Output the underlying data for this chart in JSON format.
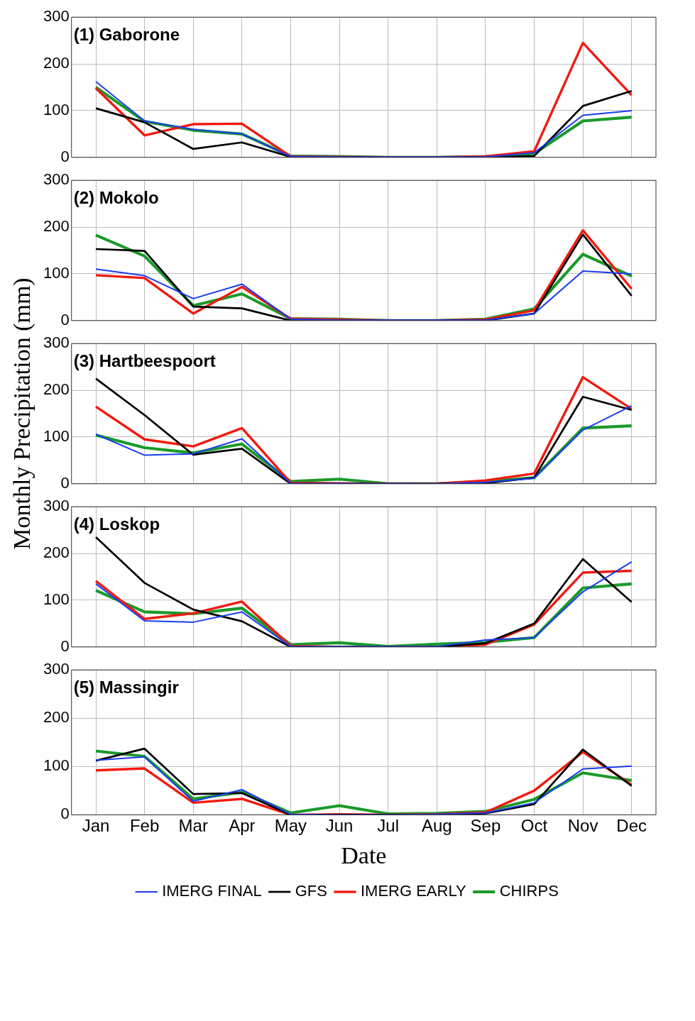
{
  "chart_data": [
    {
      "type": "line",
      "title": "(1) Gaborone",
      "ylim": [
        0,
        300
      ],
      "yticks": [
        0,
        100,
        200,
        300
      ],
      "grid": true,
      "legend": false,
      "tick_labels": "y",
      "marker": "none",
      "line_style": "solid",
      "series": [
        {
          "color": "#1a3cf0",
          "values": [
            162,
            78,
            60,
            50,
            2,
            1,
            null,
            null,
            1,
            10,
            90,
            100
          ]
        },
        {
          "color": "#000000",
          "values": [
            105,
            75,
            18,
            32,
            1,
            0,
            0,
            0,
            0,
            3,
            110,
            142
          ]
        },
        {
          "color": "#f01a0f",
          "values": [
            148,
            47,
            71,
            72,
            2,
            1,
            0,
            0,
            2,
            13,
            245,
            133
          ]
        },
        {
          "color": "#1a9a2a",
          "values": [
            150,
            77,
            58,
            50,
            3,
            2,
            0,
            0,
            2,
            8,
            78,
            86
          ]
        }
      ]
    },
    {
      "type": "line",
      "title": "(2) Mokolo",
      "ylim": [
        0,
        300
      ],
      "yticks": [
        0,
        100,
        200,
        300
      ],
      "grid": true,
      "legend": false,
      "tick_labels": "y",
      "marker": "none",
      "line_style": "solid",
      "series": [
        {
          "color": "#1a3cf0",
          "values": [
            110,
            96,
            47,
            78,
            3,
            1,
            null,
            null,
            1,
            15,
            106,
            100
          ]
        },
        {
          "color": "#000000",
          "values": [
            153,
            149,
            30,
            26,
            0,
            0,
            0,
            0,
            0,
            15,
            184,
            53
          ]
        },
        {
          "color": "#f01a0f",
          "values": [
            97,
            91,
            15,
            72,
            4,
            2,
            0,
            0,
            2,
            22,
            193,
            68
          ]
        },
        {
          "color": "#1a9a2a",
          "values": [
            183,
            138,
            32,
            57,
            4,
            3,
            0,
            0,
            3,
            25,
            142,
            95
          ]
        }
      ]
    },
    {
      "type": "line",
      "title": "(3) Hartbeespoort",
      "ylabel": "Monthly Precipitation (mm)",
      "ylim": [
        0,
        300
      ],
      "yticks": [
        0,
        100,
        200,
        300
      ],
      "grid": true,
      "legend": false,
      "tick_labels": "y",
      "marker": "none",
      "line_style": "solid",
      "series": [
        {
          "color": "#1a3cf0",
          "values": [
            106,
            61,
            64,
            96,
            1,
            null,
            null,
            0,
            3,
            12,
            115,
            167
          ]
        },
        {
          "color": "#000000",
          "values": [
            225,
            147,
            62,
            75,
            0,
            0,
            0,
            0,
            1,
            13,
            186,
            158
          ]
        },
        {
          "color": "#f01a0f",
          "values": [
            165,
            95,
            80,
            119,
            2,
            1,
            0,
            0,
            7,
            22,
            228,
            160
          ]
        },
        {
          "color": "#1a9a2a",
          "values": [
            104,
            77,
            66,
            85,
            5,
            10,
            0,
            0,
            5,
            13,
            119,
            124
          ]
        }
      ]
    },
    {
      "type": "line",
      "title": "(4) Loskop",
      "ylim": [
        0,
        300
      ],
      "yticks": [
        0,
        100,
        200,
        300
      ],
      "grid": true,
      "legend": false,
      "tick_labels": "y",
      "marker": "none",
      "line_style": "solid",
      "series": [
        {
          "color": "#1a3cf0",
          "values": [
            135,
            56,
            53,
            75,
            1,
            null,
            null,
            1,
            15,
            20,
            118,
            182
          ]
        },
        {
          "color": "#000000",
          "values": [
            235,
            137,
            80,
            55,
            0,
            0,
            0,
            0,
            8,
            50,
            188,
            96
          ]
        },
        {
          "color": "#f01a0f",
          "values": [
            141,
            60,
            72,
            97,
            2,
            0,
            0,
            0,
            5,
            48,
            159,
            163
          ]
        },
        {
          "color": "#1a9a2a",
          "values": [
            121,
            75,
            71,
            83,
            5,
            9,
            1,
            6,
            10,
            20,
            126,
            135
          ]
        }
      ]
    },
    {
      "type": "line",
      "title": "(5) Massingir",
      "xlabel": "Date",
      "categories": [
        "Jan",
        "Feb",
        "Mar",
        "Apr",
        "May",
        "Jun",
        "Jul",
        "Aug",
        "Sep",
        "Oct",
        "Nov",
        "Dec"
      ],
      "ylim": [
        0,
        300
      ],
      "yticks": [
        0,
        100,
        200,
        300
      ],
      "grid": true,
      "legend": "bottom",
      "marker": "none",
      "line_style": "solid",
      "series": [
        {
          "name": "IMERG FINAL",
          "color": "#1a3cf0",
          "values": [
            113,
            120,
            28,
            52,
            1,
            0,
            0,
            1,
            4,
            25,
            95,
            101
          ]
        },
        {
          "name": "GFS",
          "color": "#000000",
          "values": [
            112,
            137,
            43,
            45,
            0,
            0,
            0,
            0,
            3,
            22,
            135,
            60
          ]
        },
        {
          "name": "IMERG EARLY",
          "color": "#f01a0f",
          "values": [
            92,
            96,
            25,
            33,
            0,
            1,
            0,
            1,
            5,
            50,
            130,
            62
          ]
        },
        {
          "name": "CHIRPS",
          "color": "#1a9a2a",
          "values": [
            132,
            121,
            33,
            47,
            4,
            19,
            2,
            3,
            7,
            32,
            87,
            71
          ]
        }
      ]
    }
  ]
}
